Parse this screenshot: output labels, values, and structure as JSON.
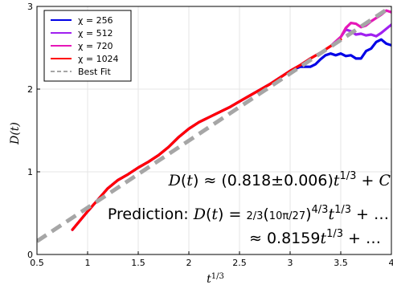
{
  "chart_data": {
    "type": "line",
    "title": "",
    "xlabel": "t^{1/3}",
    "xlabel_base": "t",
    "xlabel_exp": "1/3",
    "ylabel": "D(t)",
    "xlim": [
      0.5,
      4.0
    ],
    "ylim": [
      0,
      3
    ],
    "xticks": [
      0.5,
      1,
      1.5,
      2,
      2.5,
      3,
      3.5,
      4
    ],
    "xtick_labels": [
      "0.5",
      "1",
      "1.5",
      "2",
      "2.5",
      "3",
      "3.5",
      "4"
    ],
    "yticks": [
      0,
      1,
      2,
      3
    ],
    "ytick_labels": [
      "0",
      "1",
      "2",
      "3"
    ],
    "grid": true,
    "legend_position": "top-left",
    "series": [
      {
        "name": "χ = 256",
        "color": "#0000e6",
        "x": [
          0.85,
          1.0,
          1.1,
          1.2,
          1.3,
          1.4,
          1.5,
          1.6,
          1.7,
          1.8,
          1.9,
          2.0,
          2.1,
          2.2,
          2.3,
          2.4,
          2.5,
          2.6,
          2.7,
          2.8,
          2.9,
          3.0,
          3.1,
          3.15,
          3.2,
          3.25,
          3.3,
          3.35,
          3.4,
          3.45,
          3.5,
          3.55,
          3.6,
          3.65,
          3.7,
          3.75,
          3.8,
          3.85,
          3.9,
          3.95,
          4.0
        ],
        "y": [
          0.3,
          0.52,
          0.66,
          0.8,
          0.9,
          0.97,
          1.05,
          1.12,
          1.2,
          1.3,
          1.42,
          1.52,
          1.6,
          1.66,
          1.72,
          1.78,
          1.85,
          1.92,
          1.99,
          2.06,
          2.14,
          2.22,
          2.27,
          2.27,
          2.27,
          2.3,
          2.36,
          2.41,
          2.43,
          2.41,
          2.43,
          2.4,
          2.41,
          2.37,
          2.37,
          2.46,
          2.49,
          2.57,
          2.6,
          2.55,
          2.53
        ]
      },
      {
        "name": "χ = 512",
        "color": "#a020f0",
        "x": [
          0.85,
          1.0,
          1.1,
          1.2,
          1.3,
          1.4,
          1.5,
          1.6,
          1.7,
          1.8,
          1.9,
          2.0,
          2.1,
          2.2,
          2.3,
          2.4,
          2.5,
          2.6,
          2.7,
          2.8,
          2.9,
          3.0,
          3.1,
          3.2,
          3.3,
          3.4,
          3.5,
          3.55,
          3.6,
          3.65,
          3.7,
          3.75,
          3.8,
          3.85,
          3.9,
          3.95,
          4.0
        ],
        "y": [
          0.3,
          0.52,
          0.66,
          0.8,
          0.9,
          0.97,
          1.05,
          1.12,
          1.2,
          1.3,
          1.42,
          1.52,
          1.6,
          1.66,
          1.72,
          1.78,
          1.85,
          1.92,
          1.99,
          2.06,
          2.14,
          2.22,
          2.29,
          2.37,
          2.44,
          2.52,
          2.63,
          2.72,
          2.7,
          2.66,
          2.67,
          2.65,
          2.66,
          2.64,
          2.68,
          2.73,
          2.78
        ]
      },
      {
        "name": "χ = 720",
        "color": "#e617b8",
        "x": [
          0.85,
          1.0,
          1.1,
          1.2,
          1.3,
          1.4,
          1.5,
          1.6,
          1.7,
          1.8,
          1.9,
          2.0,
          2.1,
          2.2,
          2.3,
          2.4,
          2.5,
          2.6,
          2.7,
          2.8,
          2.9,
          3.0,
          3.1,
          3.2,
          3.3,
          3.4,
          3.5,
          3.55,
          3.6,
          3.65,
          3.7,
          3.75,
          3.8,
          3.85,
          3.9,
          3.95,
          4.0
        ],
        "y": [
          0.3,
          0.52,
          0.66,
          0.8,
          0.9,
          0.97,
          1.05,
          1.12,
          1.2,
          1.3,
          1.42,
          1.52,
          1.6,
          1.66,
          1.72,
          1.78,
          1.85,
          1.92,
          1.99,
          2.06,
          2.14,
          2.22,
          2.29,
          2.37,
          2.44,
          2.52,
          2.63,
          2.74,
          2.8,
          2.79,
          2.75,
          2.77,
          2.82,
          2.86,
          2.9,
          2.95,
          2.93
        ]
      },
      {
        "name": "χ = 1024",
        "color": "#ff0000",
        "x": [
          0.85,
          1.0,
          1.1,
          1.2,
          1.3,
          1.4,
          1.5,
          1.6,
          1.7,
          1.8,
          1.9,
          2.0,
          2.1,
          2.2,
          2.3,
          2.4,
          2.5,
          2.6,
          2.7,
          2.8,
          2.9,
          3.0,
          3.1,
          3.2,
          3.3,
          3.4,
          3.5
        ],
        "y": [
          0.3,
          0.52,
          0.66,
          0.8,
          0.9,
          0.97,
          1.05,
          1.12,
          1.2,
          1.3,
          1.42,
          1.52,
          1.6,
          1.66,
          1.72,
          1.78,
          1.85,
          1.92,
          1.99,
          2.06,
          2.14,
          2.22,
          2.29,
          2.37,
          2.44,
          2.52,
          2.6
        ]
      },
      {
        "name": "Best Fit",
        "color": "#a6a6a6",
        "dashed": true,
        "x": [
          0.5,
          4.0
        ],
        "y": [
          0.16,
          3.0
        ]
      }
    ],
    "annotations": {
      "fit": "D(t) ≈ (0.818±0.006)t^{1/3} + C",
      "prediction": "Prediction: D(t) = (2/3)(10π/27)^{4/3} t^{1/3} + …",
      "approx": "≈ 0.8159t^{1/3} + …"
    }
  }
}
